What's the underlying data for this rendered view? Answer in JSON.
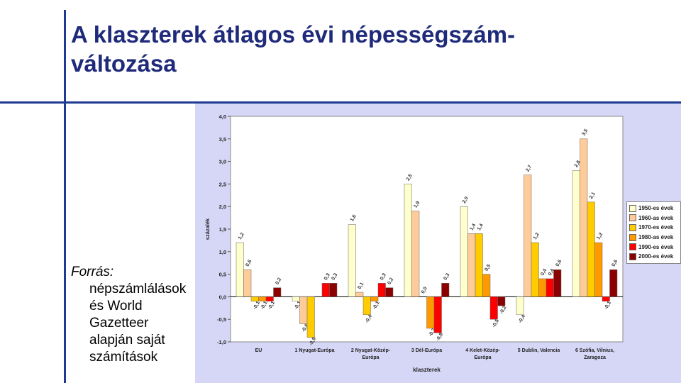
{
  "slide": {
    "title_line1": "A klaszterek átlagos évi népességszám-",
    "title_line2": "változása"
  },
  "source": {
    "label": "Forrás:",
    "text": "népszámlálások és World Gazetteer alapján saját számítások"
  },
  "chart_data": {
    "type": "bar",
    "xlabel": "klaszterek",
    "ylabel": "százalék",
    "ylim": [
      -1.0,
      4.0
    ],
    "yticks": [
      "4,0",
      "3,5",
      "3,0",
      "2,5",
      "2,0",
      "1,5",
      "1,0",
      "0,5",
      "0,0",
      "-0,5",
      "-1,0"
    ],
    "categories": [
      [
        "EU"
      ],
      [
        "1 Nyugat-Európa"
      ],
      [
        "2 Nyugat-Közép-",
        "Európa"
      ],
      [
        "3 Dél-Európa"
      ],
      [
        "4 Kelet-Közép-",
        "Európa"
      ],
      [
        "5 Dublin, Valencia"
      ],
      [
        "6 Szófia, Vilnius,",
        "Zaragoza"
      ]
    ],
    "series": [
      {
        "name": "1950-es évek",
        "color": "#ffffcc",
        "values": [
          1.2,
          -0.1,
          1.6,
          2.5,
          2.0,
          -0.4,
          2.8
        ],
        "labels": [
          "1,2",
          "-0,1",
          "1,6",
          "2,5",
          "2,0",
          "-0,4",
          "2,8"
        ]
      },
      {
        "name": "1960-as évek",
        "color": "#ffcc99",
        "values": [
          0.6,
          -0.6,
          0.1,
          1.9,
          1.4,
          2.7,
          3.5
        ],
        "labels": [
          "0,6",
          "-0,6",
          "0,1",
          "1,9",
          "1,4",
          "2,7",
          "3,5"
        ]
      },
      {
        "name": "1970-es évek",
        "color": "#ffcc00",
        "values": [
          -0.1,
          -0.9,
          -0.4,
          0.0,
          1.4,
          1.2,
          2.1
        ],
        "labels": [
          "-0,1",
          "-0,9",
          "-0,4",
          "0,0",
          "1,4",
          "1,2",
          "2,1"
        ]
      },
      {
        "name": "1980-as évek",
        "color": "#ff9900",
        "values": [
          -0.1,
          0.0,
          -0.1,
          -0.7,
          0.5,
          0.4,
          1.2
        ],
        "labels": [
          "-0,1",
          "",
          "-0,1",
          "-0,7",
          "0,5",
          "0,4",
          "1,2"
        ]
      },
      {
        "name": "1990-es évek",
        "color": "#ff0000",
        "values": [
          -0.1,
          0.3,
          0.3,
          -0.8,
          -0.5,
          0.4,
          -0.1
        ],
        "labels": [
          "-0,1",
          "0,3",
          "0,3",
          "-0,8",
          "-0,5",
          "0,4",
          "-0,1"
        ]
      },
      {
        "name": "2000-es évek",
        "color": "#8b0000",
        "values": [
          0.2,
          0.3,
          0.2,
          0.3,
          -0.2,
          0.6,
          0.6
        ],
        "labels": [
          "0,2",
          "0,3",
          "0,2",
          "0,3",
          "-0,2",
          "0,6",
          "0,6"
        ]
      }
    ],
    "legend_position": "right",
    "grid": false
  }
}
